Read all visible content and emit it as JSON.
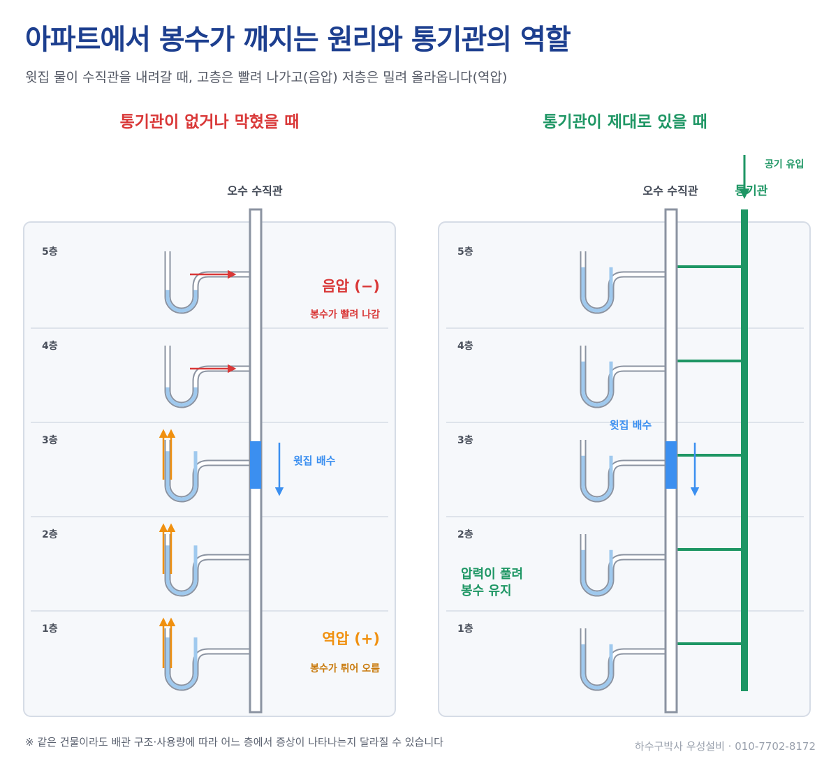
{
  "header": {
    "title": "아파트에서 봉수가 깨지는 원리와 통기관의 역할",
    "subtitle": "윗집 물이 수직관을 내려갈 때, 고층은 빨려 나가고(음압) 저층은 밀려 올라옵니다(역압)"
  },
  "colors": {
    "title": "#1d3f8f",
    "bad": "#d93838",
    "good": "#1e9664",
    "water": "#9fc9ee",
    "drain_flow": "#3b8ff0",
    "backpressure": "#f0900f",
    "pipe": "#8b93a1",
    "panel_bg": "#f6f8fb",
    "panel_border": "#d6dce6"
  },
  "floors": [
    "5층",
    "4층",
    "3층",
    "2층",
    "1층"
  ],
  "left_panel": {
    "heading": "통기관이 없거나 막혔을 때",
    "stack_label": "오수 수직관",
    "negative_label": "음압 (−)",
    "negative_sub": "봉수가 빨려 나감",
    "drain_label": "윗집 배수",
    "positive_label": "역압 (+)",
    "positive_sub": "봉수가 튀어 오름"
  },
  "right_panel": {
    "heading": "통기관이 제대로 있을 때",
    "stack_label": "오수 수직관",
    "vent_label": "통기관",
    "air_label": "공기 유입",
    "drain_label": "윗집 배수",
    "relief_line1": "압력이 풀려",
    "relief_line2": "봉수 유지"
  },
  "footer": {
    "note": "※ 같은 건물이라도 배관 구조·사용량에 따라 어느 층에서 증상이 나타나는지 달라질 수 있습니다",
    "credit": "하수구박사 우성설비 · 010-7702-8172"
  }
}
